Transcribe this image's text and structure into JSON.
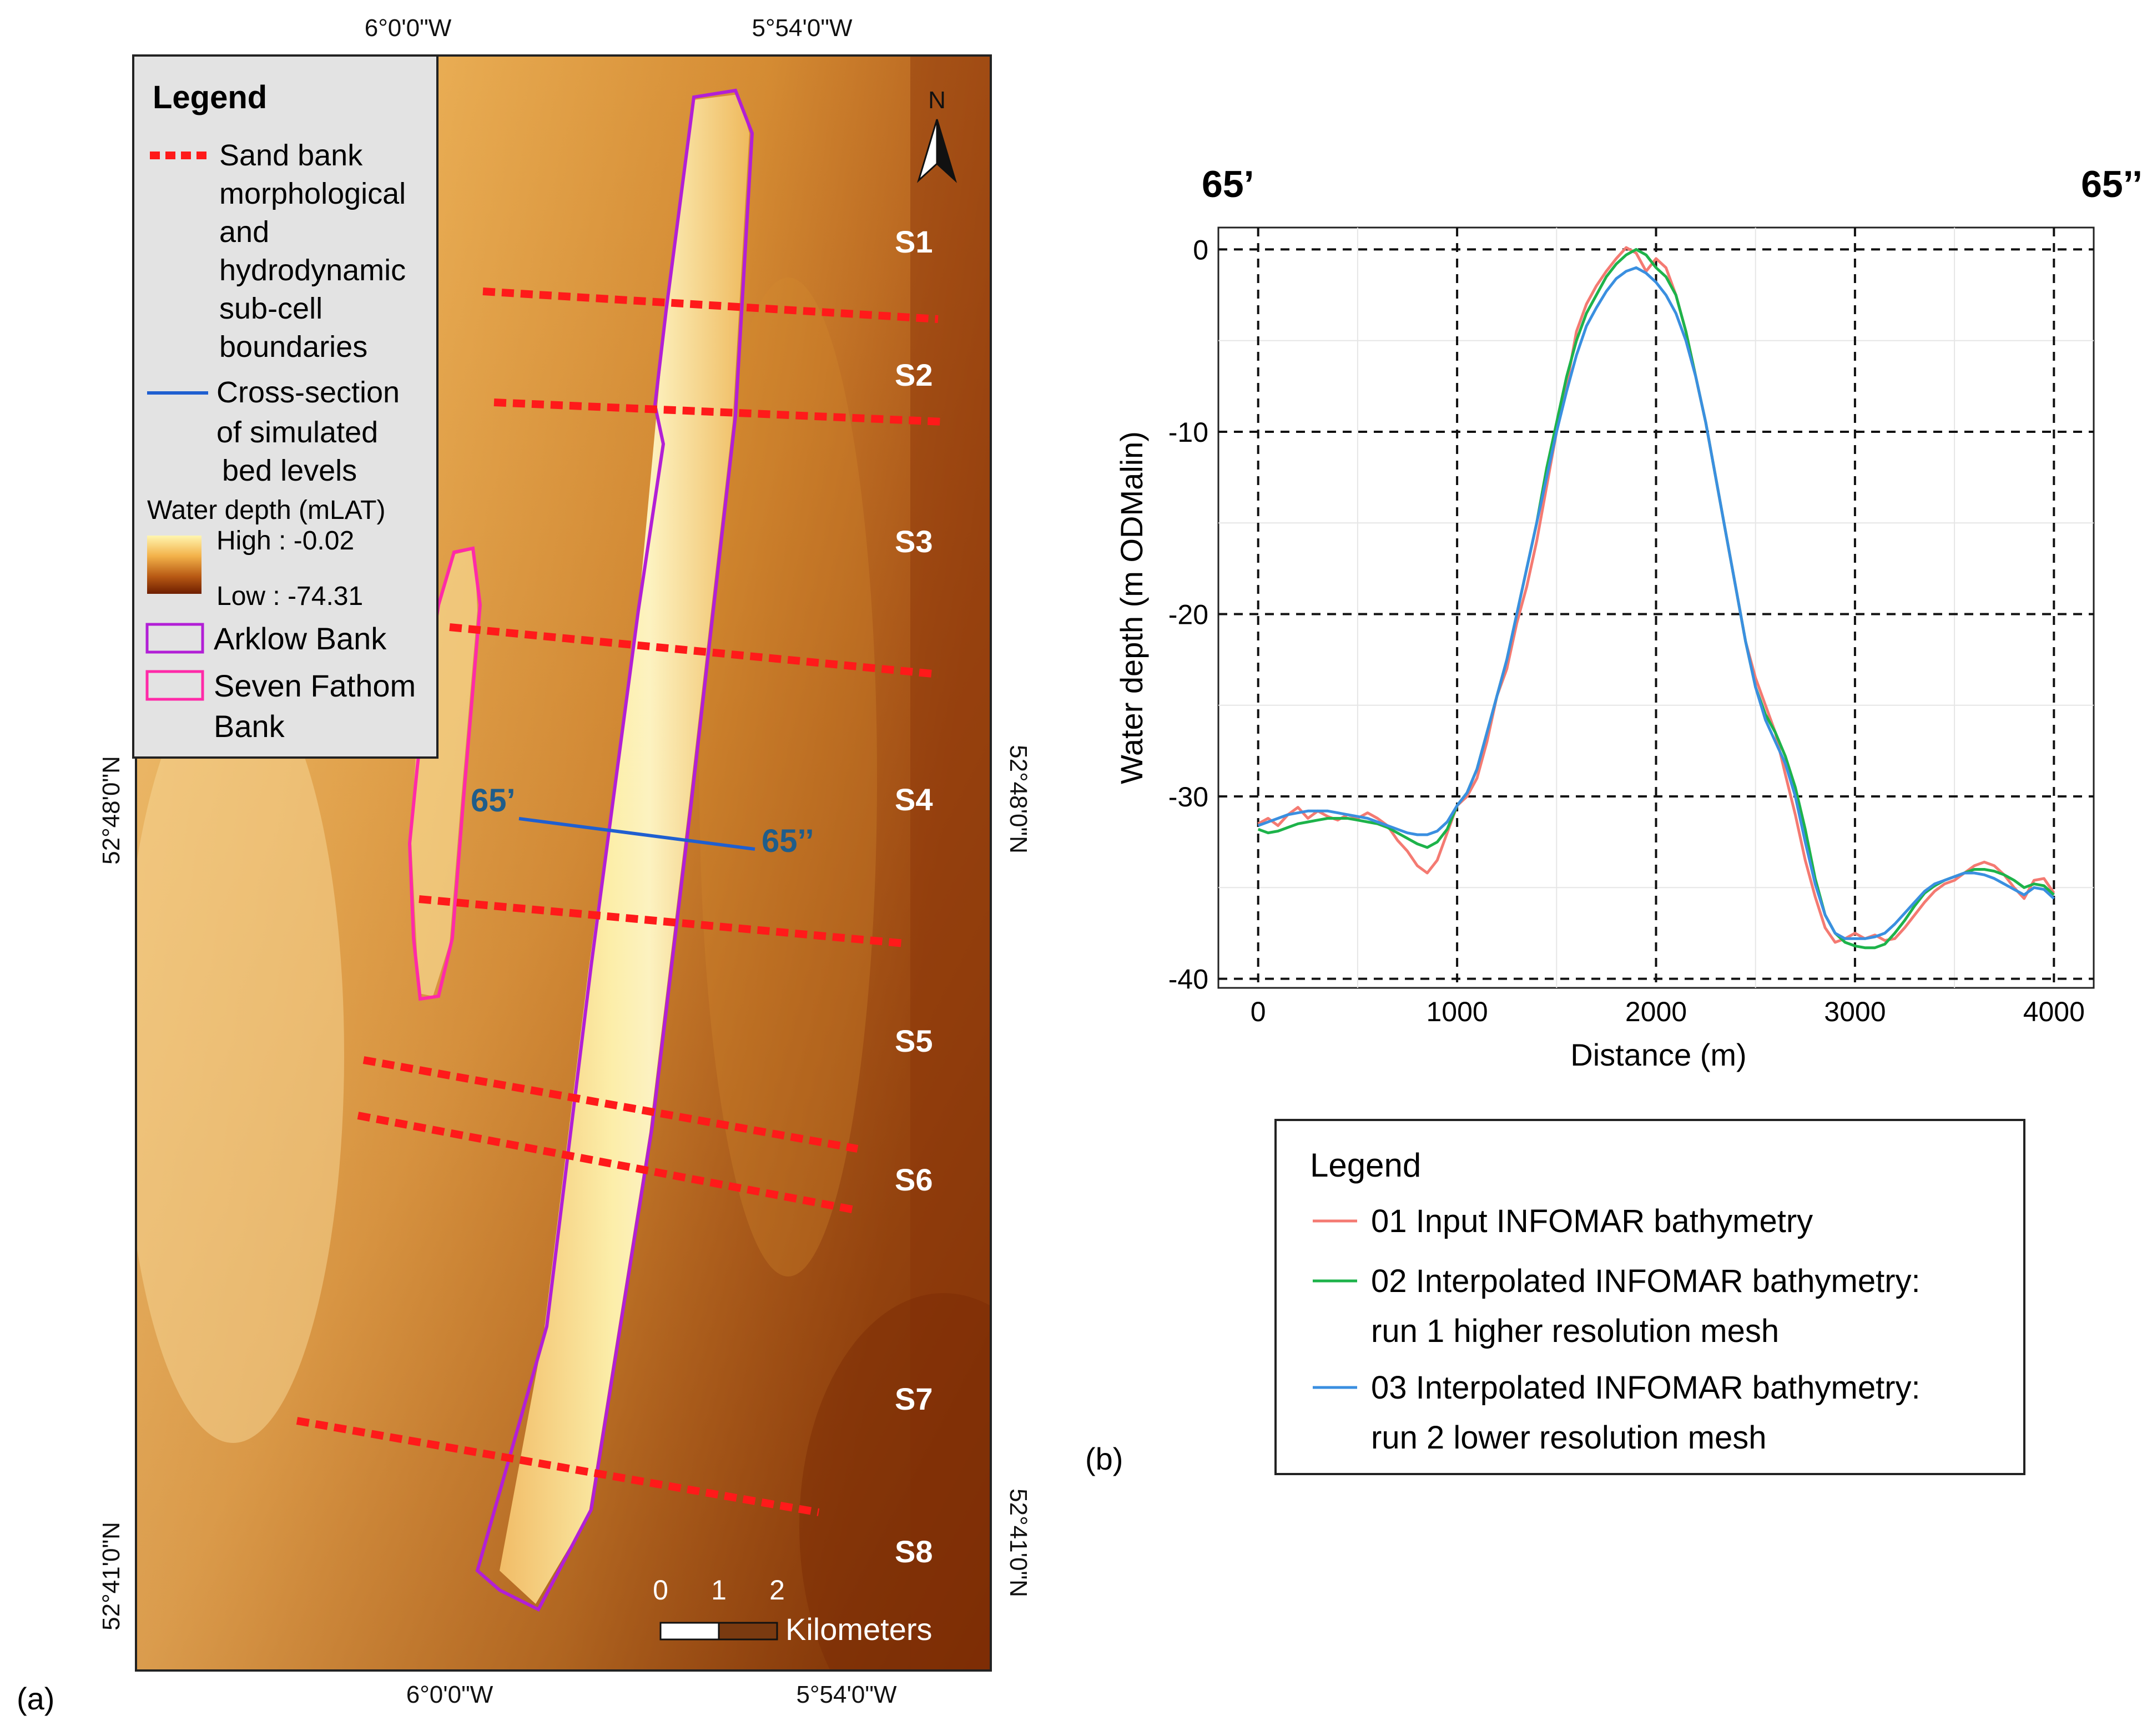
{
  "panel_a": {
    "label": "(a)",
    "graticule": {
      "top": [
        "6°0'0\"W",
        "5°54'0\"W"
      ],
      "bottom": [
        "6°0'0\"W",
        "5°54'0\"W"
      ],
      "left": [
        "52°48'0\"N",
        "52°41'0\"N"
      ],
      "right": [
        "52°48'0\"N",
        "52°41'0\"N"
      ]
    },
    "north_arrow": "N",
    "legend": {
      "title": "Legend",
      "boundaries": [
        "Sand bank",
        "morphological",
        "and",
        "hydrodynamic",
        "sub-cell",
        "boundaries"
      ],
      "cross_section": [
        "Cross-section",
        "of simulated",
        "bed levels"
      ],
      "water_depth_title": "Water depth (mLAT)",
      "high": "High : -0.02",
      "low": "Low : -74.31",
      "arklow": "Arklow Bank",
      "seven_fathom": [
        "Seven Fathom",
        "Bank"
      ]
    },
    "subcells": [
      "S1",
      "S2",
      "S3",
      "S4",
      "S5",
      "S6",
      "S7",
      "S8"
    ],
    "cross_section_labels": {
      "start": "65’",
      "end": "65’’"
    },
    "scale_bar": {
      "ticks": [
        "0",
        "1",
        "2"
      ],
      "unit": "Kilometers"
    },
    "colors": {
      "boundary": "#ff1a1a",
      "cross_section": "#1f5fd0",
      "arklow": "#b21fd6",
      "seven_fathom": "#ff2aa8",
      "depth_high": "#fff3a8",
      "depth_low": "#7a1a00"
    }
  },
  "panel_b": {
    "label": "(b)",
    "corner_labels": {
      "left": "65’",
      "right": "65’’"
    },
    "legend": {
      "title": "Legend",
      "items": [
        [
          "01 Input INFOMAR bathymetry"
        ],
        [
          "02 Interpolated INFOMAR bathymetry:",
          "run 1 higher resolution mesh"
        ],
        [
          "03 Interpolated INFOMAR bathymetry:",
          "run 2  lower resolution mesh"
        ]
      ]
    }
  },
  "chart_data": {
    "type": "line",
    "xlabel": "Distance (m)",
    "ylabel": "Water depth (m ODMalin)",
    "xlim": [
      -200,
      4200
    ],
    "ylim": [
      -40.5,
      1.2
    ],
    "xticks": [
      0,
      1000,
      2000,
      3000,
      4000
    ],
    "yticks": [
      0,
      -10,
      -20,
      -30,
      -40
    ],
    "grid": true,
    "legend_position": "below",
    "series": [
      {
        "name": "01 Input INFOMAR bathymetry",
        "color": "#f47a72",
        "x": [
          0,
          50,
          100,
          150,
          200,
          250,
          300,
          350,
          400,
          450,
          500,
          550,
          600,
          650,
          700,
          750,
          800,
          850,
          900,
          950,
          1000,
          1050,
          1100,
          1150,
          1200,
          1250,
          1300,
          1350,
          1400,
          1450,
          1500,
          1550,
          1600,
          1650,
          1700,
          1750,
          1800,
          1850,
          1900,
          1950,
          2000,
          2050,
          2100,
          2150,
          2200,
          2250,
          2300,
          2350,
          2400,
          2450,
          2500,
          2550,
          2600,
          2650,
          2700,
          2750,
          2800,
          2850,
          2900,
          2950,
          3000,
          3050,
          3100,
          3150,
          3200,
          3250,
          3300,
          3350,
          3400,
          3450,
          3500,
          3550,
          3600,
          3650,
          3700,
          3750,
          3800,
          3850,
          3900,
          3950,
          4000
        ],
        "y": [
          -31.5,
          -31.2,
          -31.6,
          -31.0,
          -30.6,
          -31.2,
          -30.8,
          -31.1,
          -31.3,
          -31.0,
          -31.2,
          -30.9,
          -31.2,
          -31.6,
          -32.4,
          -33.0,
          -33.8,
          -34.2,
          -33.5,
          -32.0,
          -30.5,
          -30.0,
          -29.0,
          -27.0,
          -24.5,
          -23.0,
          -20.5,
          -18.5,
          -16.0,
          -13.0,
          -10.0,
          -7.5,
          -4.5,
          -3.0,
          -2.0,
          -1.2,
          -0.5,
          0.1,
          -0.2,
          -1.2,
          -0.5,
          -1.0,
          -2.5,
          -4.5,
          -7.0,
          -9.5,
          -12.5,
          -15.5,
          -18.5,
          -21.5,
          -23.5,
          -25.0,
          -26.5,
          -28.8,
          -31.0,
          -33.5,
          -35.5,
          -37.2,
          -38.0,
          -37.8,
          -37.5,
          -37.8,
          -37.6,
          -37.9,
          -37.8,
          -37.2,
          -36.5,
          -35.8,
          -35.2,
          -34.8,
          -34.6,
          -34.2,
          -33.8,
          -33.6,
          -33.8,
          -34.3,
          -35.0,
          -35.6,
          -34.6,
          -34.5,
          -35.3
        ]
      },
      {
        "name": "02 Interpolated INFOMAR bathymetry: run 1 higher resolution mesh",
        "color": "#1db34a",
        "x": [
          0,
          50,
          100,
          150,
          200,
          250,
          300,
          350,
          400,
          450,
          500,
          550,
          600,
          650,
          700,
          750,
          800,
          850,
          900,
          950,
          1000,
          1050,
          1100,
          1150,
          1200,
          1250,
          1300,
          1350,
          1400,
          1450,
          1500,
          1550,
          1600,
          1650,
          1700,
          1750,
          1800,
          1850,
          1900,
          1950,
          2000,
          2050,
          2100,
          2150,
          2200,
          2250,
          2300,
          2350,
          2400,
          2450,
          2500,
          2550,
          2600,
          2650,
          2700,
          2750,
          2800,
          2850,
          2900,
          2950,
          3000,
          3050,
          3100,
          3150,
          3200,
          3250,
          3300,
          3350,
          3400,
          3450,
          3500,
          3550,
          3600,
          3650,
          3700,
          3750,
          3800,
          3850,
          3900,
          3950,
          4000
        ],
        "y": [
          -31.8,
          -32.0,
          -31.9,
          -31.7,
          -31.5,
          -31.4,
          -31.3,
          -31.2,
          -31.2,
          -31.2,
          -31.3,
          -31.4,
          -31.5,
          -31.7,
          -32.0,
          -32.3,
          -32.6,
          -32.8,
          -32.5,
          -31.8,
          -30.5,
          -29.8,
          -28.5,
          -26.5,
          -24.5,
          -22.5,
          -20.0,
          -17.5,
          -15.0,
          -12.0,
          -9.5,
          -7.0,
          -5.0,
          -3.5,
          -2.5,
          -1.5,
          -0.8,
          -0.3,
          0.0,
          -0.3,
          -1.0,
          -1.5,
          -2.5,
          -4.5,
          -7.0,
          -9.5,
          -12.5,
          -15.5,
          -18.5,
          -21.5,
          -24.0,
          -25.5,
          -26.5,
          -27.8,
          -29.5,
          -31.8,
          -34.5,
          -36.5,
          -37.5,
          -38.0,
          -38.2,
          -38.3,
          -38.3,
          -38.1,
          -37.5,
          -36.8,
          -36.0,
          -35.3,
          -34.9,
          -34.6,
          -34.4,
          -34.2,
          -34.0,
          -34.0,
          -34.1,
          -34.3,
          -34.6,
          -35.0,
          -34.8,
          -34.9,
          -35.4
        ]
      },
      {
        "name": "03 Interpolated INFOMAR bathymetry: run 2 lower resolution mesh",
        "color": "#3a8fe0",
        "x": [
          0,
          50,
          100,
          150,
          200,
          250,
          300,
          350,
          400,
          450,
          500,
          550,
          600,
          650,
          700,
          750,
          800,
          850,
          900,
          950,
          1000,
          1050,
          1100,
          1150,
          1200,
          1250,
          1300,
          1350,
          1400,
          1450,
          1500,
          1550,
          1600,
          1650,
          1700,
          1750,
          1800,
          1850,
          1900,
          1950,
          2000,
          2050,
          2100,
          2150,
          2200,
          2250,
          2300,
          2350,
          2400,
          2450,
          2500,
          2550,
          2600,
          2650,
          2700,
          2750,
          2800,
          2850,
          2900,
          2950,
          3000,
          3050,
          3100,
          3150,
          3200,
          3250,
          3300,
          3350,
          3400,
          3450,
          3500,
          3550,
          3600,
          3650,
          3700,
          3750,
          3800,
          3850,
          3900,
          3950,
          4000
        ],
        "y": [
          -31.6,
          -31.4,
          -31.2,
          -31.0,
          -30.9,
          -30.8,
          -30.8,
          -30.8,
          -30.9,
          -31.0,
          -31.1,
          -31.2,
          -31.4,
          -31.6,
          -31.8,
          -32.0,
          -32.1,
          -32.1,
          -31.9,
          -31.4,
          -30.5,
          -29.8,
          -28.5,
          -26.5,
          -24.5,
          -22.5,
          -20.0,
          -17.5,
          -15.0,
          -12.5,
          -10.0,
          -7.8,
          -5.8,
          -4.2,
          -3.2,
          -2.3,
          -1.6,
          -1.2,
          -1.0,
          -1.3,
          -1.8,
          -2.5,
          -3.5,
          -5.0,
          -7.0,
          -9.5,
          -12.5,
          -15.5,
          -18.5,
          -21.5,
          -24.0,
          -25.8,
          -27.0,
          -28.2,
          -30.0,
          -32.5,
          -34.8,
          -36.5,
          -37.5,
          -37.8,
          -37.8,
          -37.8,
          -37.7,
          -37.5,
          -37.0,
          -36.4,
          -35.8,
          -35.2,
          -34.8,
          -34.6,
          -34.4,
          -34.2,
          -34.2,
          -34.3,
          -34.5,
          -34.8,
          -35.1,
          -35.4,
          -35.0,
          -35.1,
          -35.6
        ]
      }
    ]
  }
}
